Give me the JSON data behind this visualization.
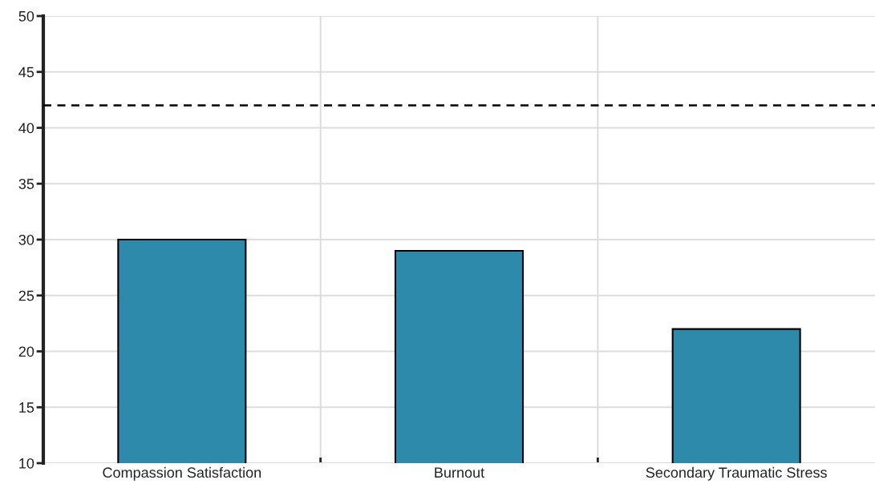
{
  "chart_data": {
    "type": "bar",
    "categories": [
      "Compassion Satisfaction",
      "Burnout",
      "Secondary Traumatic Stress"
    ],
    "values": [
      30,
      29,
      22
    ],
    "color": "#2e8aab",
    "ylim": [
      10,
      50
    ],
    "yticks": [
      10,
      15,
      20,
      25,
      30,
      35,
      40,
      45,
      50
    ],
    "grid": true,
    "ref_lines": [
      {
        "axis": "y",
        "value": 42,
        "line_style": "dashed",
        "color": "#000000"
      }
    ]
  }
}
